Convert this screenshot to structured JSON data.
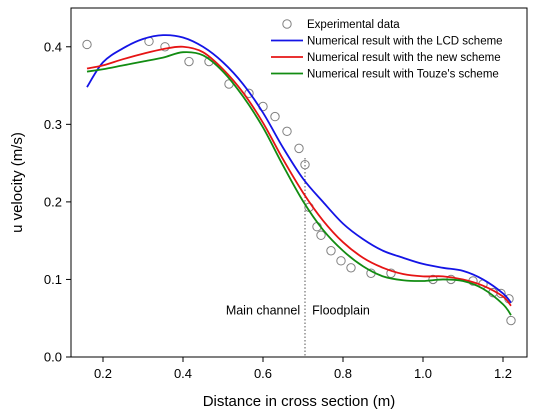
{
  "chart_data": {
    "type": "line",
    "xlabel": "Distance in cross section (m)",
    "ylabel": "u velocity (m/s)",
    "xlim": [
      0.12,
      1.26
    ],
    "ylim": [
      0.0,
      0.45
    ],
    "xticks": [
      "0.2",
      "0.4",
      "0.6",
      "0.8",
      "1.0",
      "1.2"
    ],
    "yticks": [
      "0.0",
      "0.1",
      "0.2",
      "0.3",
      "0.4"
    ],
    "grid": false,
    "legend": "top-right",
    "divider_x": 0.705,
    "annotations": [
      {
        "text": "Main channel",
        "x": 0.6,
        "y": 0.055
      },
      {
        "text": "Floodplain",
        "x": 0.795,
        "y": 0.055
      }
    ],
    "series": [
      {
        "name": "Experimental data",
        "marker": "circle",
        "color": "#808080",
        "x": [
          0.16,
          0.315,
          0.355,
          0.415,
          0.465,
          0.515,
          0.565,
          0.6,
          0.63,
          0.66,
          0.69,
          0.705,
          0.715,
          0.735,
          0.745,
          0.77,
          0.795,
          0.82,
          0.87,
          0.92,
          1.025,
          1.07,
          1.125,
          1.15,
          1.175,
          1.195,
          1.215,
          1.22
        ],
        "y": [
          0.403,
          0.407,
          0.4,
          0.381,
          0.381,
          0.352,
          0.34,
          0.323,
          0.31,
          0.291,
          0.269,
          0.248,
          0.193,
          0.168,
          0.157,
          0.137,
          0.124,
          0.115,
          0.108,
          0.108,
          0.1,
          0.1,
          0.098,
          0.094,
          0.083,
          0.082,
          0.075,
          0.047
        ]
      },
      {
        "name": "Numerical result with the LCD scheme",
        "color": "#1414e6",
        "x": [
          0.16,
          0.2,
          0.25,
          0.3,
          0.35,
          0.4,
          0.45,
          0.5,
          0.55,
          0.6,
          0.65,
          0.7,
          0.75,
          0.8,
          0.85,
          0.9,
          0.95,
          1.0,
          1.05,
          1.1,
          1.15,
          1.2,
          1.22
        ],
        "y": [
          0.348,
          0.38,
          0.398,
          0.41,
          0.415,
          0.412,
          0.4,
          0.38,
          0.352,
          0.315,
          0.27,
          0.23,
          0.2,
          0.172,
          0.152,
          0.137,
          0.128,
          0.12,
          0.115,
          0.111,
          0.1,
          0.082,
          0.07
        ]
      },
      {
        "name": "Numerical result with the new scheme",
        "color": "#e61414",
        "x": [
          0.16,
          0.2,
          0.25,
          0.3,
          0.35,
          0.4,
          0.45,
          0.5,
          0.55,
          0.6,
          0.65,
          0.7,
          0.75,
          0.8,
          0.85,
          0.9,
          0.95,
          1.0,
          1.05,
          1.1,
          1.15,
          1.2,
          1.22
        ],
        "y": [
          0.372,
          0.376,
          0.384,
          0.391,
          0.397,
          0.4,
          0.393,
          0.371,
          0.341,
          0.302,
          0.255,
          0.212,
          0.176,
          0.148,
          0.128,
          0.115,
          0.107,
          0.104,
          0.104,
          0.1,
          0.092,
          0.078,
          0.066
        ]
      },
      {
        "name": "Numerical result with Touze's scheme",
        "color": "#128c12",
        "x": [
          0.16,
          0.2,
          0.25,
          0.3,
          0.35,
          0.4,
          0.45,
          0.5,
          0.55,
          0.6,
          0.65,
          0.7,
          0.75,
          0.8,
          0.85,
          0.9,
          0.95,
          1.0,
          1.05,
          1.1,
          1.15,
          1.2,
          1.22
        ],
        "y": [
          0.368,
          0.371,
          0.376,
          0.381,
          0.386,
          0.393,
          0.389,
          0.368,
          0.336,
          0.296,
          0.247,
          0.201,
          0.164,
          0.137,
          0.117,
          0.104,
          0.099,
          0.098,
          0.1,
          0.098,
          0.088,
          0.068,
          0.054
        ]
      }
    ]
  }
}
